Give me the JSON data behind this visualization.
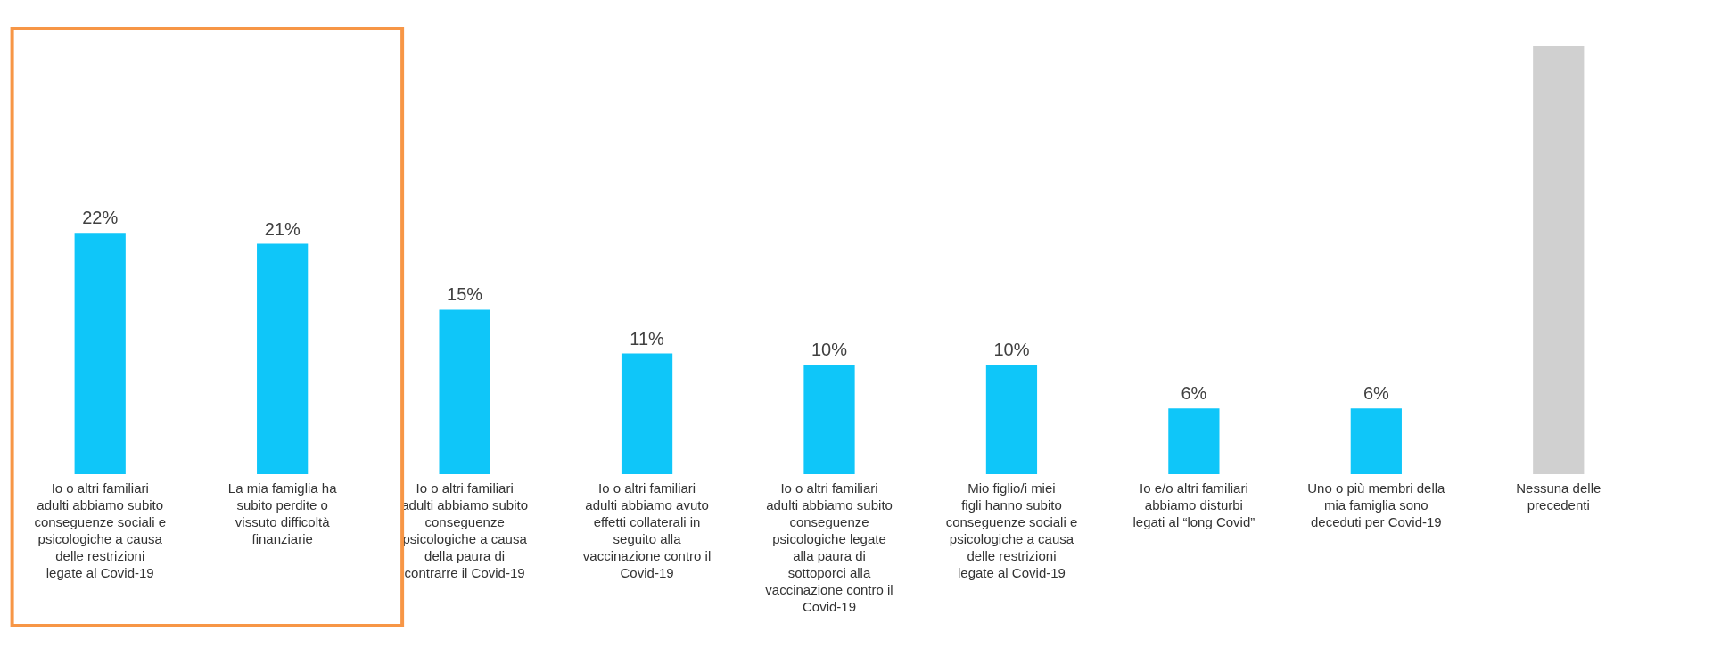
{
  "chart_data": {
    "type": "bar",
    "categories": [
      "Io o altri familiari adulti abbiamo subito conseguenze sociali e psicologiche a causa delle restrizioni legate al Covid-19",
      "La mia famiglia ha subito perdite o vissuto difficoltà finanziarie",
      "Io o altri familiari adulti abbiamo subito conseguenze psicologiche a causa della paura di contrarre il Covid-19",
      "Io o altri familiari adulti abbiamo avuto effetti collaterali in seguito alla vaccinazione contro il Covid-19",
      "Io o altri familiari adulti abbiamo subito conseguenze psicologiche legate alla paura di sottoporci alla vaccinazione contro il Covid-19",
      "Mio figlio/i miei figli hanno subito conseguenze sociali e psicologiche a causa delle restrizioni legate al Covid-19",
      "Io e/o altri familiari abbiamo disturbi legati al “long Covid”",
      "Uno o più membri della mia famiglia sono deceduti per Covid-19",
      "Nessuna delle precedenti"
    ],
    "values": [
      22,
      21,
      15,
      11,
      10,
      10,
      6,
      6,
      39
    ],
    "colors": [
      "#0fc6f9",
      "#0fc6f9",
      "#0fc6f9",
      "#0fc6f9",
      "#0fc6f9",
      "#0fc6f9",
      "#0fc6f9",
      "#0fc6f9",
      "#d0d0d0"
    ],
    "value_labels": [
      "22%",
      "21%",
      "15%",
      "11%",
      "10%",
      "10%",
      "6%",
      "6%",
      null
    ],
    "ylim": [
      0,
      39
    ]
  }
}
